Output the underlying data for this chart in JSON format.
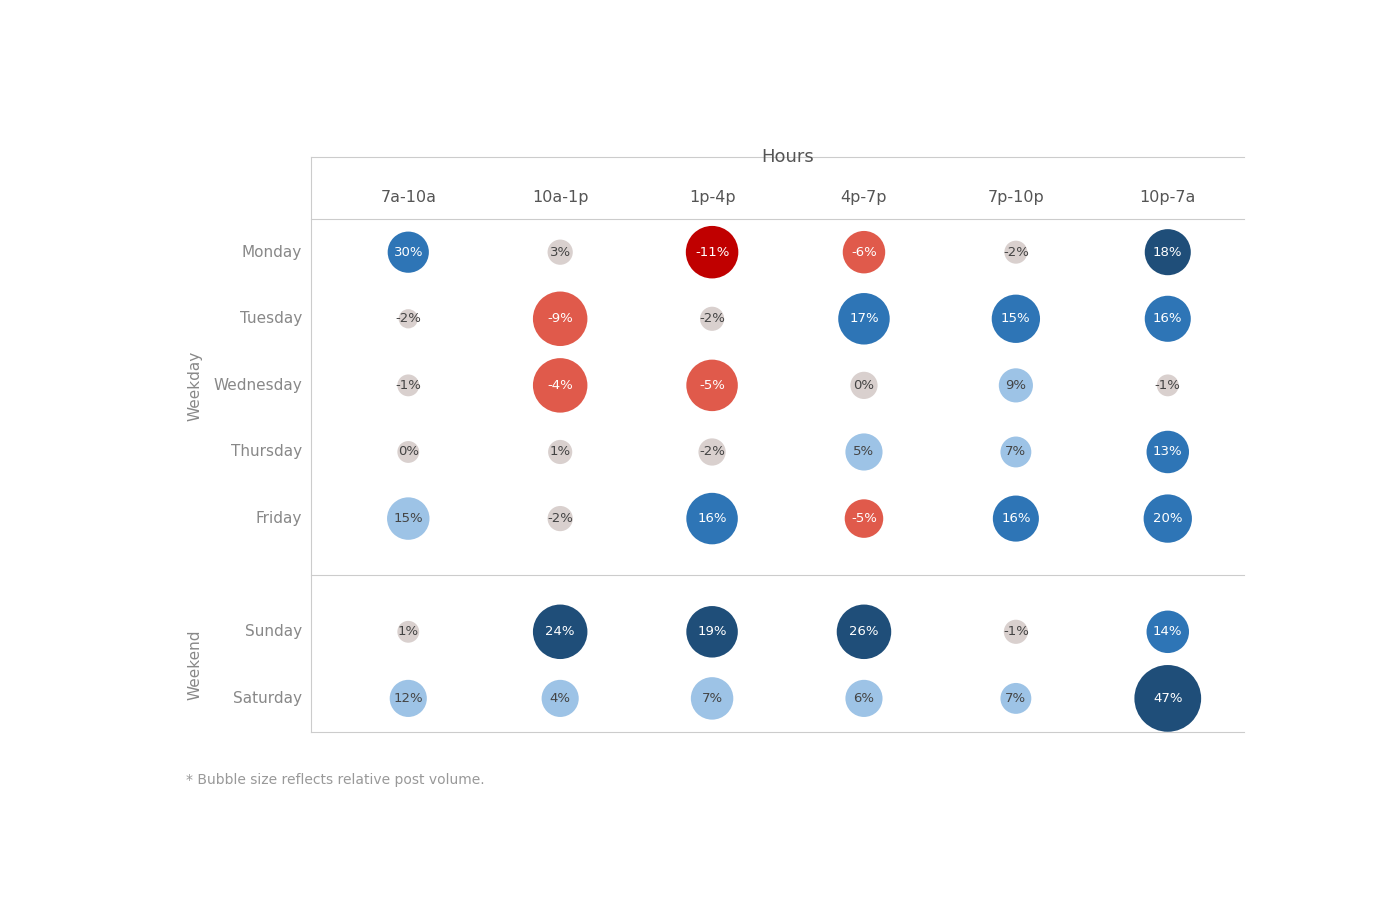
{
  "title": "Hours",
  "columns": [
    "7a-10a",
    "10a-1p",
    "1p-4p",
    "4p-7p",
    "7p-10p",
    "10p-7a"
  ],
  "weekday_label": "Weekday",
  "weekend_label": "Weekend",
  "rows": [
    {
      "label": "Monday",
      "group": "weekday",
      "values": [
        30,
        3,
        -11,
        -6,
        -2,
        18
      ]
    },
    {
      "label": "Tuesday",
      "group": "weekday",
      "values": [
        -2,
        -9,
        -2,
        17,
        15,
        16
      ]
    },
    {
      "label": "Wednesday",
      "group": "weekday",
      "values": [
        -1,
        -4,
        -5,
        0,
        9,
        -1
      ]
    },
    {
      "label": "Thursday",
      "group": "weekday",
      "values": [
        0,
        1,
        -2,
        5,
        7,
        13
      ]
    },
    {
      "label": "Friday",
      "group": "weekday",
      "values": [
        15,
        -2,
        16,
        -5,
        16,
        20
      ]
    },
    {
      "label": "Sunday",
      "group": "weekend",
      "values": [
        1,
        24,
        19,
        26,
        -1,
        14
      ]
    },
    {
      "label": "Saturday",
      "group": "weekend",
      "values": [
        12,
        4,
        7,
        6,
        7,
        47
      ]
    }
  ],
  "bubble_sizes": [
    [
      1600,
      600,
      2600,
      1700,
      500,
      2000
    ],
    [
      350,
      2800,
      550,
      2500,
      2200,
      2000
    ],
    [
      450,
      2800,
      2500,
      700,
      1100,
      450
    ],
    [
      450,
      550,
      700,
      1300,
      900,
      1700
    ],
    [
      1700,
      600,
      2500,
      1400,
      2000,
      2200
    ],
    [
      450,
      2800,
      2500,
      2800,
      550,
      1700
    ],
    [
      1300,
      1300,
      1700,
      1300,
      900,
      4200
    ]
  ],
  "cell_colors": [
    [
      "#2e75b6",
      "#d9d0ce",
      "#c00000",
      "#e05a4b",
      "#d9d0ce",
      "#1f4e79"
    ],
    [
      "#d9d0ce",
      "#e05a4b",
      "#d9d0ce",
      "#2e75b6",
      "#2e75b6",
      "#2e75b6"
    ],
    [
      "#d9d0ce",
      "#e05a4b",
      "#e05a4b",
      "#d9d0ce",
      "#9dc3e6",
      "#d9d0ce"
    ],
    [
      "#d9d0ce",
      "#d9d0ce",
      "#d9d0ce",
      "#9dc3e6",
      "#9dc3e6",
      "#2e75b6"
    ],
    [
      "#9dc3e6",
      "#d9d0ce",
      "#2e75b6",
      "#e05a4b",
      "#2e75b6",
      "#2e75b6"
    ],
    [
      "#d9d0ce",
      "#1f4e79",
      "#1f4e79",
      "#1f4e79",
      "#d9d0ce",
      "#2e75b6"
    ],
    [
      "#9dc3e6",
      "#9dc3e6",
      "#9dc3e6",
      "#9dc3e6",
      "#9dc3e6",
      "#1f4e79"
    ]
  ],
  "footnote": "* Bubble size reflects relative post volume.",
  "background_color": "#ffffff",
  "grid_color": "#cccccc",
  "neutral_color": "#d9d0ce"
}
